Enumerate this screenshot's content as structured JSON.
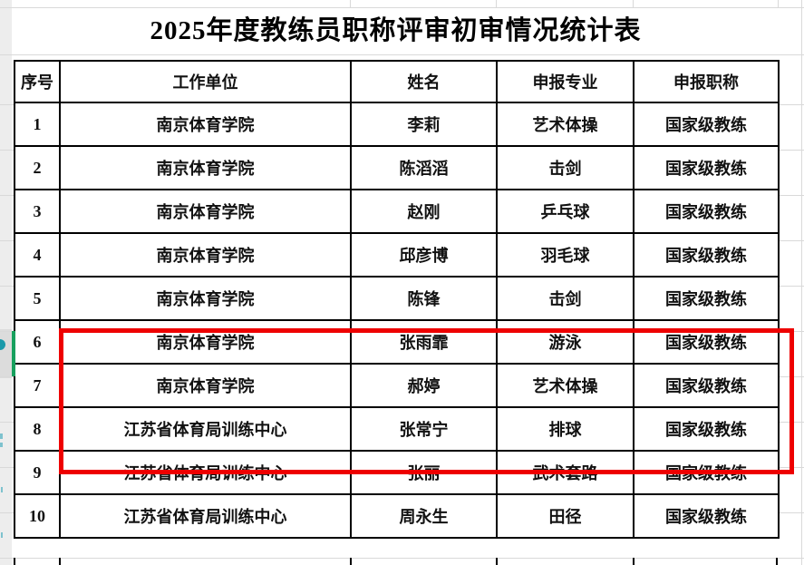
{
  "title": "2025年度教练员职称评审初审情况统计表",
  "table": {
    "columns": [
      "序号",
      "工作单位",
      "姓名",
      "申报专业",
      "申报职称"
    ],
    "rows": [
      {
        "seq": "1",
        "unit": "南京体育学院",
        "name": "李莉",
        "specialty": "艺术体操",
        "job_title": "国家级教练"
      },
      {
        "seq": "2",
        "unit": "南京体育学院",
        "name": "陈滔滔",
        "specialty": "击剑",
        "job_title": "国家级教练"
      },
      {
        "seq": "3",
        "unit": "南京体育学院",
        "name": "赵刚",
        "specialty": "乒乓球",
        "job_title": "国家级教练"
      },
      {
        "seq": "4",
        "unit": "南京体育学院",
        "name": "邱彦博",
        "specialty": "羽毛球",
        "job_title": "国家级教练"
      },
      {
        "seq": "5",
        "unit": "南京体育学院",
        "name": "陈锋",
        "specialty": "击剑",
        "job_title": "国家级教练"
      },
      {
        "seq": "6",
        "unit": "南京体育学院",
        "name": "张雨霏",
        "specialty": "游泳",
        "job_title": "国家级教练"
      },
      {
        "seq": "7",
        "unit": "南京体育学院",
        "name": "郝婷",
        "specialty": "艺术体操",
        "job_title": "国家级教练"
      },
      {
        "seq": "8",
        "unit": "江苏省体育局训练中心",
        "name": "张常宁",
        "specialty": "排球",
        "job_title": "国家级教练"
      },
      {
        "seq": "9",
        "unit": "江苏省体育局训练中心",
        "name": "张丽",
        "specialty": "武术套路",
        "job_title": "国家级教练"
      },
      {
        "seq": "10",
        "unit": "江苏省体育局训练中心",
        "name": "周永生",
        "specialty": "田径",
        "job_title": "国家级教练"
      }
    ]
  },
  "annotations": {
    "highlighted_row_seqs": [
      "6",
      "7",
      "8"
    ],
    "highlight_box_color": "#ee0000",
    "selected_row_seq": "6",
    "selection_indicator_color": "#17a05e",
    "collaborator_marker_color": "#1b9aaa"
  }
}
